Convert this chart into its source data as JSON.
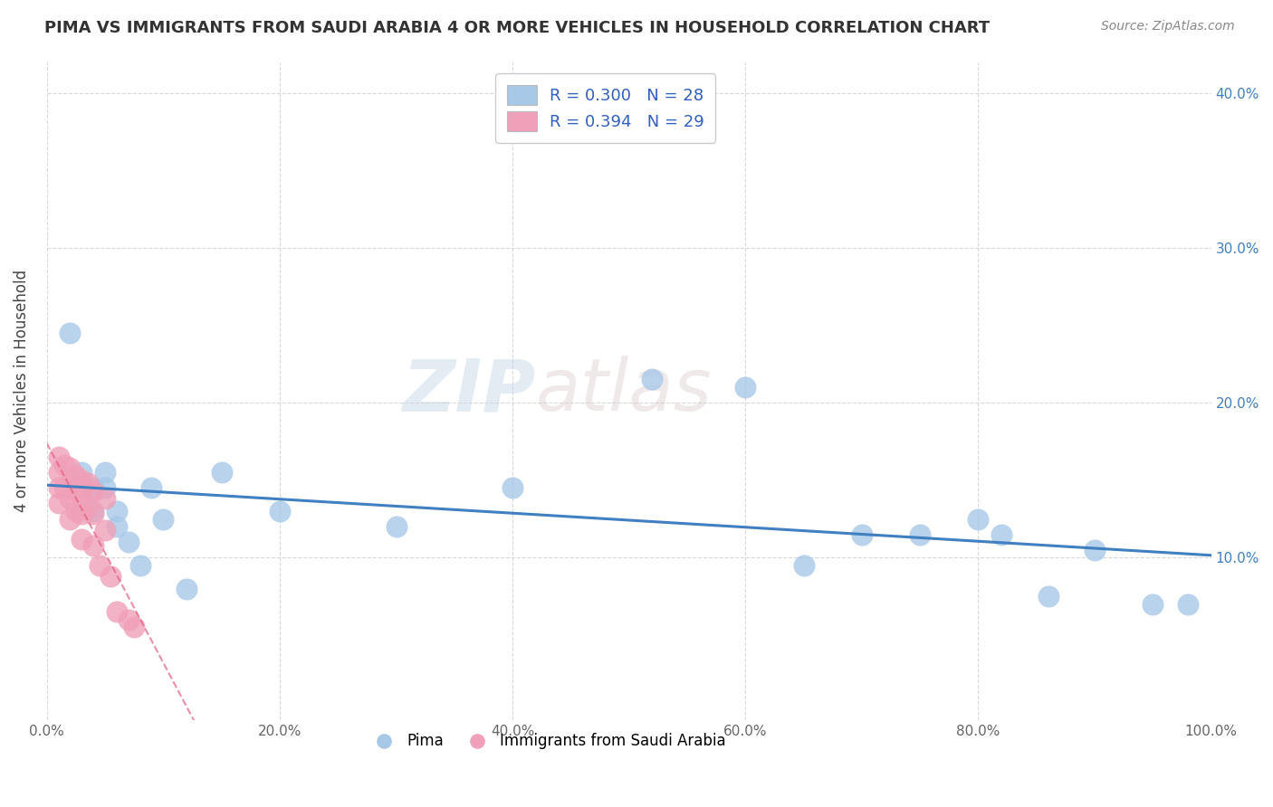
{
  "title": "PIMA VS IMMIGRANTS FROM SAUDI ARABIA 4 OR MORE VEHICLES IN HOUSEHOLD CORRELATION CHART",
  "source": "Source: ZipAtlas.com",
  "ylabel": "4 or more Vehicles in Household",
  "xlim": [
    0.0,
    1.0
  ],
  "ylim": [
    -0.005,
    0.42
  ],
  "xtick_labels": [
    "0.0%",
    "20.0%",
    "40.0%",
    "60.0%",
    "80.0%",
    "100.0%"
  ],
  "xtick_vals": [
    0.0,
    0.2,
    0.4,
    0.6,
    0.8,
    1.0
  ],
  "ytick_labels": [
    "10.0%",
    "20.0%",
    "30.0%",
    "40.0%"
  ],
  "ytick_vals": [
    0.1,
    0.2,
    0.3,
    0.4
  ],
  "pima_R": 0.3,
  "pima_N": 28,
  "saudi_R": 0.394,
  "saudi_N": 29,
  "pima_color": "#a8c8e8",
  "saudi_color": "#f0a0b8",
  "pima_line_color": "#4080c0",
  "saudi_line_color": "#e06080",
  "watermark_zip": "ZIP",
  "watermark_atlas": "atlas",
  "pima_x": [
    0.02,
    0.03,
    0.04,
    0.04,
    0.05,
    0.05,
    0.06,
    0.06,
    0.07,
    0.08,
    0.09,
    0.1,
    0.12,
    0.15,
    0.2,
    0.3,
    0.4,
    0.52,
    0.6,
    0.65,
    0.7,
    0.75,
    0.8,
    0.82,
    0.86,
    0.9,
    0.95,
    0.98
  ],
  "pima_y": [
    0.245,
    0.155,
    0.145,
    0.13,
    0.155,
    0.145,
    0.13,
    0.12,
    0.11,
    0.095,
    0.145,
    0.125,
    0.08,
    0.155,
    0.13,
    0.12,
    0.145,
    0.215,
    0.21,
    0.095,
    0.115,
    0.115,
    0.125,
    0.115,
    0.075,
    0.105,
    0.07,
    0.07
  ],
  "saudi_x": [
    0.01,
    0.01,
    0.01,
    0.01,
    0.015,
    0.015,
    0.02,
    0.02,
    0.02,
    0.02,
    0.025,
    0.025,
    0.025,
    0.03,
    0.03,
    0.03,
    0.03,
    0.035,
    0.035,
    0.04,
    0.04,
    0.04,
    0.045,
    0.05,
    0.05,
    0.055,
    0.06,
    0.07,
    0.075
  ],
  "saudi_y": [
    0.165,
    0.155,
    0.145,
    0.135,
    0.16,
    0.145,
    0.158,
    0.148,
    0.138,
    0.125,
    0.153,
    0.143,
    0.13,
    0.15,
    0.14,
    0.128,
    0.112,
    0.148,
    0.133,
    0.143,
    0.128,
    0.108,
    0.095,
    0.138,
    0.118,
    0.088,
    0.065,
    0.06,
    0.055
  ],
  "background_color": "#ffffff",
  "grid_color": "#d8d8d8",
  "title_fontsize": 13,
  "tick_fontsize": 11,
  "ylabel_fontsize": 12
}
